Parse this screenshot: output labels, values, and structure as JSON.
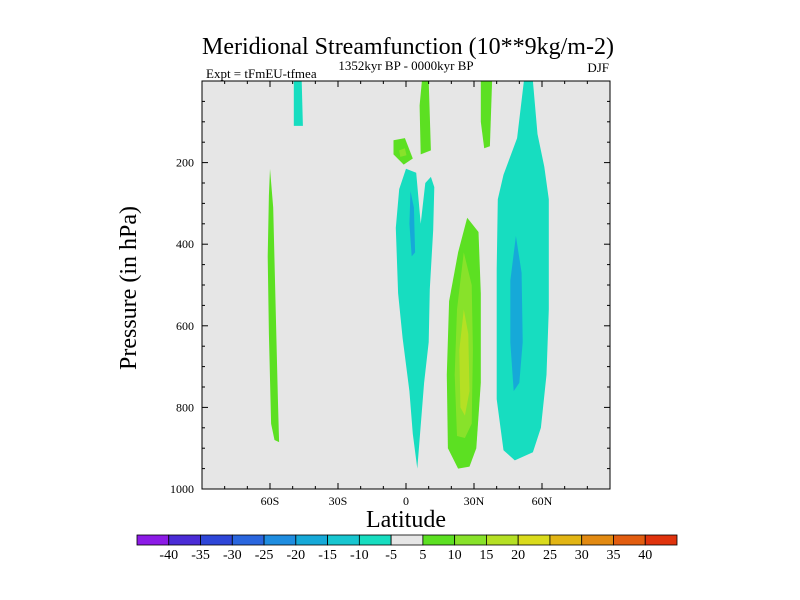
{
  "chart_data": {
    "type": "contour",
    "title": "Meridional Streamfunction (10**9kg/m-2)",
    "left_string": "Expt = tFmEU-tfmea",
    "center_string": "1352kyr BP - 0000kyr BP",
    "right_string": "DJF",
    "xlabel": "Latitude",
    "ylabel": "Pressure (in hPa)",
    "xlim": [
      -90,
      90
    ],
    "ylim": [
      1000,
      0
    ],
    "x_ticks": [
      -60,
      -30,
      0,
      30,
      60
    ],
    "x_tick_labels": [
      "60S",
      "30S",
      "0",
      "30N",
      "60N"
    ],
    "y_ticks": [
      200,
      400,
      600,
      800,
      1000
    ],
    "y_tick_labels": [
      "200",
      "400",
      "600",
      "800",
      "1000"
    ],
    "colorbar": {
      "levels": [
        -40,
        -35,
        -30,
        -25,
        -20,
        -15,
        -10,
        -5,
        5,
        10,
        15,
        20,
        25,
        30,
        35,
        40
      ],
      "labels": [
        "-40",
        "-35",
        "-30",
        "-25",
        "-20",
        "-15",
        "-10",
        "-5",
        "5",
        "10",
        "15",
        "20",
        "25",
        "30",
        "35",
        "40"
      ],
      "colors": [
        "#8c1be6",
        "#4b2cd6",
        "#2e46d8",
        "#2a66de",
        "#1f8de0",
        "#16a9d8",
        "#18c6d0",
        "#17ddc0",
        "#e6e6e6",
        "#5ce022",
        "#88e22a",
        "#b5e024",
        "#dadb1c",
        "#e2b514",
        "#e28a12",
        "#e25d10",
        "#e0330d"
      ]
    },
    "background_color": "#e6e6e6",
    "features": [
      {
        "name": "jet-tip-30S",
        "color": "#17ddc0",
        "points": [
          [
            -49.5,
            0
          ],
          [
            -46,
            0
          ],
          [
            -45.5,
            110
          ],
          [
            -49.5,
            110
          ]
        ]
      },
      {
        "name": "green-column-65S",
        "color": "#5ce022",
        "points": [
          [
            -60,
            215
          ],
          [
            -58.6,
            310
          ],
          [
            -57.5,
            560
          ],
          [
            -56.5,
            780
          ],
          [
            -56,
            885
          ],
          [
            -58,
            880
          ],
          [
            -59.5,
            840
          ],
          [
            -60.5,
            620
          ],
          [
            -61,
            430
          ],
          [
            -60.5,
            280
          ]
        ]
      },
      {
        "name": "green-column-eq",
        "color": "#5ce022",
        "points": [
          [
            7,
            0
          ],
          [
            10,
            0
          ],
          [
            11,
            170
          ],
          [
            6.5,
            180
          ],
          [
            6,
            60
          ]
        ]
      },
      {
        "name": "green-blob-eq",
        "color": "#5ce022",
        "points": [
          [
            -5.5,
            145
          ],
          [
            -0.5,
            140
          ],
          [
            3,
            190
          ],
          [
            -1,
            205
          ],
          [
            -5.5,
            180
          ]
        ]
      },
      {
        "name": "green-blob-eq-inner",
        "color": "#88e22a",
        "points": [
          [
            -3,
            170
          ],
          [
            -0.5,
            165
          ],
          [
            0.2,
            182
          ],
          [
            -2.5,
            186
          ]
        ]
      },
      {
        "name": "green-column-40N",
        "color": "#5ce022",
        "points": [
          [
            33,
            0
          ],
          [
            38,
            0
          ],
          [
            37,
            160
          ],
          [
            34.5,
            165
          ],
          [
            33,
            100
          ]
        ]
      },
      {
        "name": "cyan-eq",
        "color": "#17ddc0",
        "points": [
          [
            0,
            215
          ],
          [
            4.5,
            225
          ],
          [
            6.5,
            350
          ],
          [
            8.5,
            250
          ],
          [
            11,
            235
          ],
          [
            12.5,
            260
          ],
          [
            12,
            365
          ],
          [
            10.5,
            510
          ],
          [
            10,
            640
          ],
          [
            8,
            740
          ],
          [
            5,
            950
          ],
          [
            3,
            865
          ],
          [
            1.5,
            760
          ],
          [
            -1.5,
            630
          ],
          [
            -3.5,
            520
          ],
          [
            -4.5,
            360
          ],
          [
            -3,
            265
          ]
        ]
      },
      {
        "name": "cyan-eq-inner",
        "color": "#16a9d8",
        "points": [
          [
            2,
            270
          ],
          [
            3.5,
            310
          ],
          [
            4,
            420
          ],
          [
            2.5,
            430
          ],
          [
            1.5,
            350
          ]
        ]
      },
      {
        "name": "green-30N-outer",
        "color": "#5ce022",
        "points": [
          [
            27,
            335
          ],
          [
            32,
            370
          ],
          [
            33,
            520
          ],
          [
            33,
            740
          ],
          [
            31,
            900
          ],
          [
            28,
            945
          ],
          [
            23,
            950
          ],
          [
            18.5,
            900
          ],
          [
            18,
            720
          ],
          [
            19,
            540
          ],
          [
            23,
            420
          ]
        ]
      },
      {
        "name": "green-30N-middle",
        "color": "#88e22a",
        "points": [
          [
            25.5,
            420
          ],
          [
            29,
            500
          ],
          [
            29.5,
            660
          ],
          [
            29,
            840
          ],
          [
            26,
            875
          ],
          [
            22.5,
            870
          ],
          [
            21.5,
            720
          ],
          [
            22.5,
            560
          ]
        ]
      },
      {
        "name": "green-30N-inner",
        "color": "#b5e024",
        "points": [
          [
            25.5,
            560
          ],
          [
            27.5,
            620
          ],
          [
            28,
            760
          ],
          [
            26,
            820
          ],
          [
            24,
            800
          ],
          [
            23.5,
            660
          ]
        ]
      },
      {
        "name": "cyan-60N-outer",
        "color": "#17ddc0",
        "points": [
          [
            52,
            0
          ],
          [
            56,
            0
          ],
          [
            58,
            130
          ],
          [
            61,
            210
          ],
          [
            63,
            290
          ],
          [
            63,
            560
          ],
          [
            62,
            720
          ],
          [
            59.5,
            850
          ],
          [
            56,
            910
          ],
          [
            48,
            930
          ],
          [
            43,
            905
          ],
          [
            40,
            780
          ],
          [
            40,
            460
          ],
          [
            40.5,
            290
          ],
          [
            43,
            230
          ],
          [
            49,
            140
          ]
        ]
      },
      {
        "name": "cyan-60N-inner",
        "color": "#16a9d8",
        "points": [
          [
            48.5,
            380
          ],
          [
            51,
            470
          ],
          [
            51.5,
            640
          ],
          [
            50,
            740
          ],
          [
            47.5,
            760
          ],
          [
            46,
            640
          ],
          [
            46,
            490
          ]
        ]
      }
    ]
  }
}
